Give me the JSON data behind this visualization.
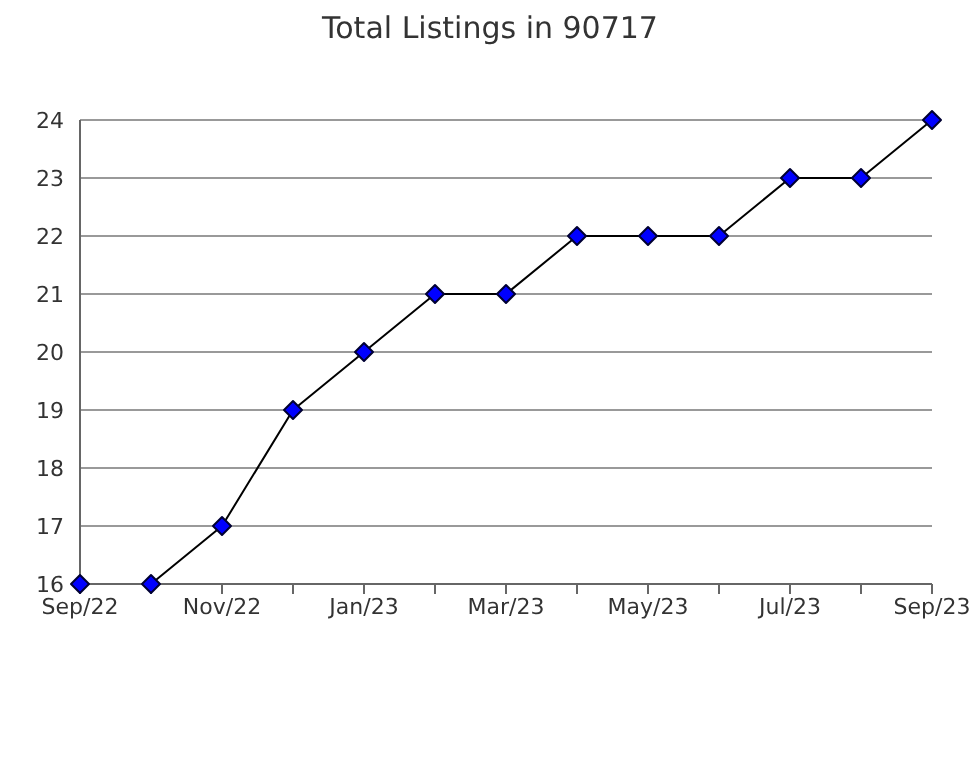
{
  "chart_data": {
    "type": "line",
    "title": "Total Listings in 90717",
    "categories": [
      "Sep/22",
      null,
      "Nov/22",
      null,
      "Jan/23",
      null,
      "Mar/23",
      null,
      "May/23",
      null,
      "Jul/23",
      null,
      "Sep/23"
    ],
    "series": [
      {
        "color": "#0000ff",
        "values": [
          16,
          16,
          17,
          19,
          20,
          21,
          21,
          22,
          22,
          22,
          23,
          23,
          24
        ]
      }
    ],
    "ylim": [
      16,
      24
    ],
    "yticks": [
      16,
      17,
      18,
      19,
      20,
      21,
      22,
      23,
      24
    ],
    "grid": "y",
    "marker": "diamond",
    "line_style": "solid",
    "legend": false
  }
}
